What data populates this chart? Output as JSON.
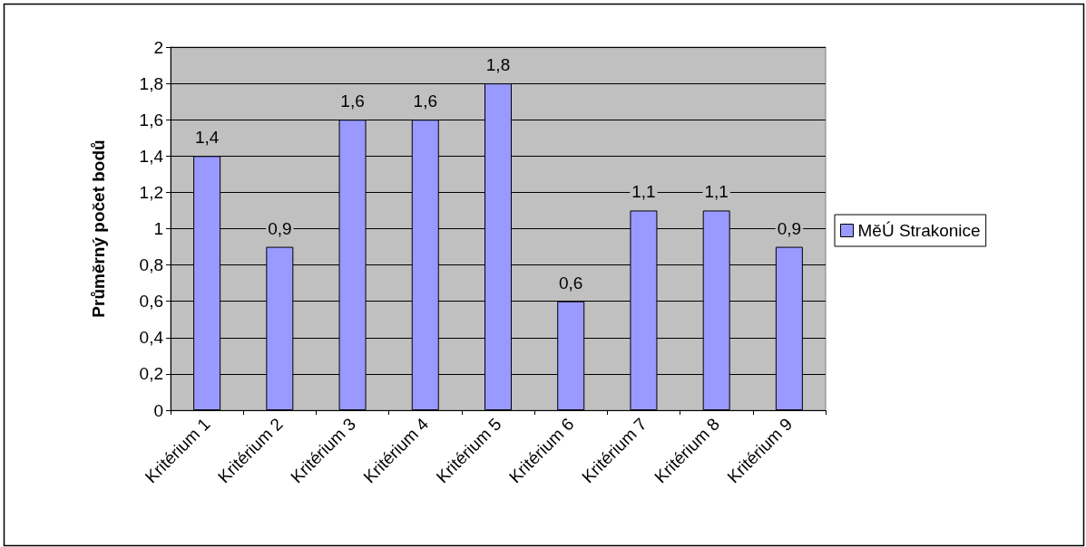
{
  "chart_data": {
    "type": "bar",
    "ylabel": "Průměrný počet bodů",
    "categories": [
      "Kritérium 1",
      "Kritérium 2",
      "Kritérium 3",
      "Kritérium 4",
      "Kritérium 5",
      "Kritérium 6",
      "Kritérium 7",
      "Kritérium 8",
      "Kritérium 9"
    ],
    "series": [
      {
        "name": "MěÚ Strakonice",
        "color": "#9999ff",
        "values": [
          1.4,
          0.9,
          1.6,
          1.6,
          1.8,
          0.6,
          1.1,
          1.1,
          0.9
        ],
        "value_labels": [
          "1,4",
          "0,9",
          "1,6",
          "1,6",
          "1,8",
          "0,6",
          "1,1",
          "1,1",
          "0,9"
        ]
      }
    ],
    "ylim": [
      0,
      2
    ],
    "yticks": [
      {
        "value": 0,
        "label": "0"
      },
      {
        "value": 0.2,
        "label": "0,2"
      },
      {
        "value": 0.4,
        "label": "0,4"
      },
      {
        "value": 0.6,
        "label": "0,6"
      },
      {
        "value": 0.8,
        "label": "0,8"
      },
      {
        "value": 1,
        "label": "1"
      },
      {
        "value": 1.2,
        "label": "1,2"
      },
      {
        "value": 1.4,
        "label": "1,4"
      },
      {
        "value": 1.6,
        "label": "1,6"
      },
      {
        "value": 1.8,
        "label": "1,8"
      },
      {
        "value": 2,
        "label": "2"
      }
    ],
    "grid": "y",
    "legend": "right"
  }
}
